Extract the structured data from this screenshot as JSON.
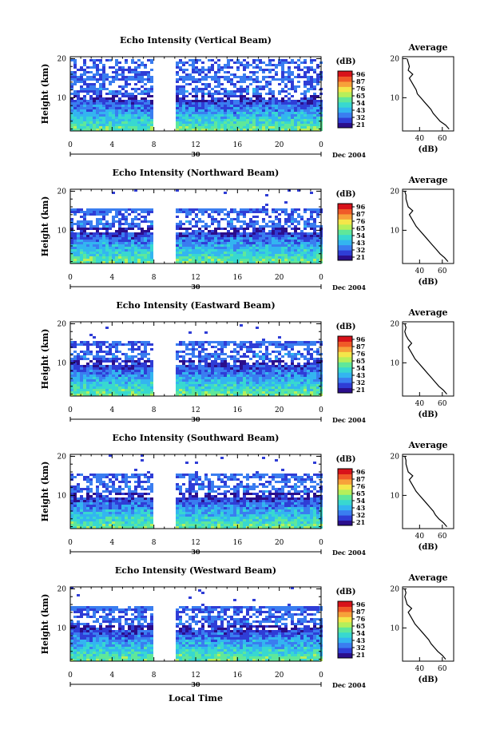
{
  "figure": {
    "xlabel": "Local Time",
    "date_label": "Dec 2004",
    "day_label": "30"
  },
  "colorbar": {
    "unit": "(dB)",
    "colors": [
      "#2b0e8c",
      "#2f3dd6",
      "#3a7df0",
      "#33b5f0",
      "#38d8d0",
      "#5fe79a",
      "#b6ef5a",
      "#f4e64a",
      "#f7a13a",
      "#f05a28",
      "#d8121a"
    ]
  },
  "chart_data": [
    {
      "type": "heatmap",
      "title": "Echo Intensity (Vertical Beam)",
      "xlabel": "",
      "ylabel": "Height (km)",
      "x_ticks": [
        "0",
        "4",
        "8",
        "12",
        "16",
        "20",
        "0"
      ],
      "xlim": [
        0,
        24
      ],
      "ylim": [
        1.5,
        20.5
      ],
      "y_ticks": [
        "20",
        "10"
      ],
      "data_gap_hours": [
        8.2,
        9.9
      ],
      "colorbar_ticks": [
        "96",
        "87",
        "76",
        "65",
        "54",
        "43",
        "32",
        "21"
      ],
      "echo_top_km": 20,
      "average_profile": {
        "title": "Average",
        "xlabel": "(dB)",
        "x_ticks": [
          "40",
          "60"
        ],
        "xlim": [
          25,
          70
        ],
        "heights_km": [
          2,
          3,
          4,
          5,
          6,
          7,
          8,
          9,
          10,
          11,
          12,
          13,
          14,
          15,
          16,
          17,
          18,
          19,
          20
        ],
        "values_db": [
          66,
          63,
          58,
          55,
          52,
          50,
          47,
          44,
          41,
          38,
          37,
          35,
          33,
          31,
          34,
          30,
          31,
          30,
          29
        ]
      }
    },
    {
      "type": "heatmap",
      "title": "Echo Intensity (Northward Beam)",
      "xlabel": "",
      "ylabel": "Height (km)",
      "x_ticks": [
        "0",
        "4",
        "8",
        "12",
        "16",
        "20",
        "0"
      ],
      "xlim": [
        0,
        24
      ],
      "ylim": [
        1.5,
        20.5
      ],
      "y_ticks": [
        "20",
        "10"
      ],
      "data_gap_hours": [
        8.2,
        9.9
      ],
      "colorbar_ticks": [
        "96",
        "87",
        "76",
        "65",
        "54",
        "43",
        "32",
        "21"
      ],
      "echo_top_km": 16,
      "average_profile": {
        "title": "Average",
        "xlabel": "(dB)",
        "x_ticks": [
          "40",
          "60"
        ],
        "xlim": [
          25,
          70
        ],
        "heights_km": [
          2,
          3,
          4,
          5,
          6,
          7,
          8,
          9,
          10,
          11,
          12,
          13,
          14,
          15,
          16,
          17,
          18,
          19,
          20
        ],
        "values_db": [
          65,
          62,
          58,
          55,
          52,
          49,
          46,
          43,
          40,
          37,
          35,
          33,
          31,
          34,
          30,
          29,
          28,
          28,
          27
        ]
      }
    },
    {
      "type": "heatmap",
      "title": "Echo Intensity (Eastward Beam)",
      "xlabel": "",
      "ylabel": "Height (km)",
      "x_ticks": [
        "0",
        "4",
        "8",
        "12",
        "16",
        "20",
        "0"
      ],
      "xlim": [
        0,
        24
      ],
      "ylim": [
        1.5,
        20.5
      ],
      "y_ticks": [
        "20",
        "10"
      ],
      "data_gap_hours": [
        8.2,
        9.9
      ],
      "colorbar_ticks": [
        "96",
        "87",
        "76",
        "65",
        "54",
        "43",
        "32",
        "21"
      ],
      "echo_top_km": 16,
      "average_profile": {
        "title": "Average",
        "xlabel": "(dB)",
        "x_ticks": [
          "40",
          "60"
        ],
        "xlim": [
          25,
          70
        ],
        "heights_km": [
          2,
          3,
          4,
          5,
          6,
          7,
          8,
          9,
          10,
          11,
          12,
          13,
          14,
          15,
          16,
          17,
          18,
          19,
          20
        ],
        "values_db": [
          64,
          61,
          57,
          54,
          51,
          48,
          45,
          42,
          39,
          36,
          34,
          32,
          30,
          33,
          30,
          28,
          27,
          28,
          27
        ]
      }
    },
    {
      "type": "heatmap",
      "title": "Echo Intensity (Southward Beam)",
      "xlabel": "",
      "ylabel": "Height (km)",
      "x_ticks": [
        "0",
        "4",
        "8",
        "12",
        "16",
        "20",
        "0"
      ],
      "xlim": [
        0,
        24
      ],
      "ylim": [
        1.5,
        20.5
      ],
      "y_ticks": [
        "20",
        "10"
      ],
      "data_gap_hours": [
        8.2,
        9.9
      ],
      "colorbar_ticks": [
        "96",
        "87",
        "76",
        "65",
        "54",
        "43",
        "32",
        "21"
      ],
      "echo_top_km": 16,
      "average_profile": {
        "title": "Average",
        "xlabel": "(dB)",
        "x_ticks": [
          "40",
          "60"
        ],
        "xlim": [
          25,
          70
        ],
        "heights_km": [
          2,
          3,
          4,
          5,
          6,
          7,
          8,
          9,
          10,
          11,
          12,
          13,
          14,
          15,
          16,
          17,
          18,
          19,
          20
        ],
        "values_db": [
          64,
          61,
          57,
          54,
          52,
          49,
          46,
          43,
          40,
          37,
          35,
          33,
          31,
          34,
          30,
          29,
          28,
          28,
          27
        ]
      }
    },
    {
      "type": "heatmap",
      "title": "Echo Intensity (Westward Beam)",
      "xlabel": "",
      "ylabel": "Height (km)",
      "x_ticks": [
        "0",
        "4",
        "8",
        "12",
        "16",
        "20",
        "0"
      ],
      "xlim": [
        0,
        24
      ],
      "ylim": [
        1.5,
        20.5
      ],
      "y_ticks": [
        "20",
        "10"
      ],
      "data_gap_hours": [
        8.2,
        9.9
      ],
      "colorbar_ticks": [
        "96",
        "87",
        "76",
        "65",
        "54",
        "43",
        "32",
        "21"
      ],
      "echo_top_km": 16,
      "average_profile": {
        "title": "Average",
        "xlabel": "(dB)",
        "x_ticks": [
          "40",
          "60"
        ],
        "xlim": [
          25,
          70
        ],
        "heights_km": [
          2,
          3,
          4,
          5,
          6,
          7,
          8,
          9,
          10,
          11,
          12,
          13,
          14,
          15,
          16,
          17,
          18,
          19,
          20
        ],
        "values_db": [
          63,
          60,
          56,
          53,
          50,
          48,
          45,
          42,
          39,
          36,
          34,
          32,
          30,
          33,
          29,
          28,
          27,
          28,
          27
        ]
      }
    }
  ]
}
